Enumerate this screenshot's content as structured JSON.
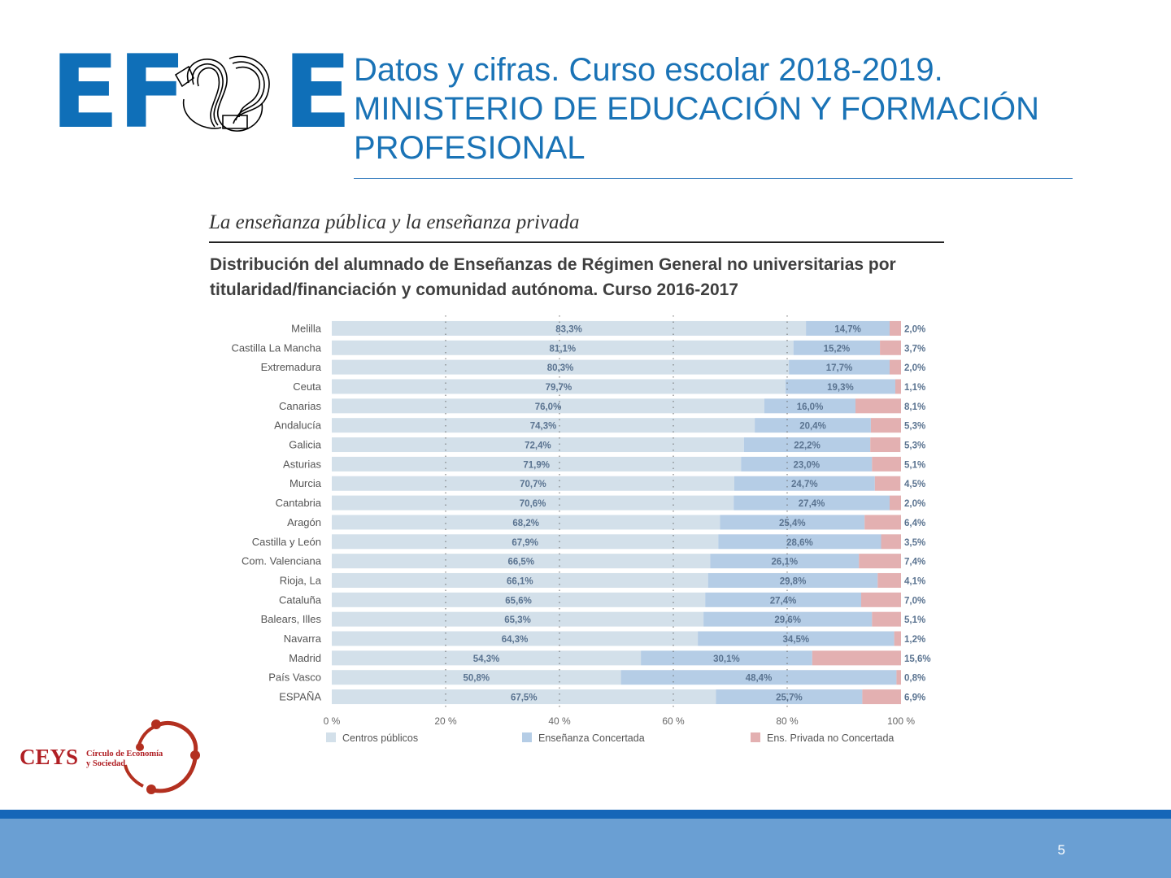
{
  "header": {
    "logo_text_left": "EF",
    "logo_text_right": "E",
    "title": "Datos y cifras. Curso escolar 2018-2019. MINISTERIO DE EDUCACIÓN Y FORMACIÓN PROFESIONAL"
  },
  "section_title": "La enseñanza pública y la enseñanza privada",
  "chart_title": "Distribución del alumnado de Enseñanzas de Régimen General no universitarias por titularidad/financiación y comunidad autónoma. Curso 2016-2017",
  "chart_data": {
    "type": "bar",
    "orientation": "horizontal",
    "stacked": true,
    "categories": [
      "Melilla",
      "Castilla La Mancha",
      "Extremadura",
      "Ceuta",
      "Canarias",
      "Andalucía",
      "Galicia",
      "Asturias",
      "Murcia",
      "Cantabria",
      "Aragón",
      "Castilla y León",
      "Com. Valenciana",
      "Rioja, La",
      "Cataluña",
      "Balears, Illes",
      "Navarra",
      "Madrid",
      "País Vasco",
      "ESPAÑA"
    ],
    "series": [
      {
        "name": "Centros públicos",
        "color": "#d3e0ea",
        "values": [
          83.3,
          81.1,
          80.3,
          79.7,
          76.0,
          74.3,
          72.4,
          71.9,
          70.7,
          70.6,
          68.2,
          67.9,
          66.5,
          66.1,
          65.6,
          65.3,
          64.3,
          54.3,
          50.8,
          67.5
        ],
        "labels": [
          "83,3%",
          "81,1%",
          "80,3%",
          "79,7%",
          "76,0%",
          "74,3%",
          "72,4%",
          "71,9%",
          "70,7%",
          "70,6%",
          "68,2%",
          "67,9%",
          "66,5%",
          "66,1%",
          "65,6%",
          "65,3%",
          "64,3%",
          "54,3%",
          "50,8%",
          "67,5%"
        ]
      },
      {
        "name": "Enseñanza Concertada",
        "color": "#b5cde6",
        "values": [
          14.7,
          15.2,
          17.7,
          19.3,
          16.0,
          20.4,
          22.2,
          23.0,
          24.7,
          27.4,
          25.4,
          28.6,
          26.1,
          29.8,
          27.4,
          29.6,
          34.5,
          30.1,
          48.4,
          25.7
        ],
        "labels": [
          "14,7%",
          "15,2%",
          "17,7%",
          "19,3%",
          "16,0%",
          "20,4%",
          "22,2%",
          "23,0%",
          "24,7%",
          "27,4%",
          "25,4%",
          "28,6%",
          "26,1%",
          "29,8%",
          "27,4%",
          "29,6%",
          "34,5%",
          "30,1%",
          "48,4%",
          "25,7%"
        ]
      },
      {
        "name": "Ens. Privada no Concertada",
        "color": "#e3b0b1",
        "values": [
          2.0,
          3.7,
          2.0,
          1.1,
          8.1,
          5.3,
          5.3,
          5.1,
          4.5,
          2.0,
          6.4,
          3.5,
          7.4,
          4.1,
          7.0,
          5.1,
          1.2,
          15.6,
          0.8,
          6.9
        ],
        "labels": [
          "2,0%",
          "3,7%",
          "2,0%",
          "1,1%",
          "8,1%",
          "5,3%",
          "5,3%",
          "5,1%",
          "4,5%",
          "2,0%",
          "6,4%",
          "3,5%",
          "7,4%",
          "4,1%",
          "7,0%",
          "5,1%",
          "1,2%",
          "15,6%",
          "0,8%",
          "6,9%"
        ]
      }
    ],
    "x_ticks": [
      "0 %",
      "20 %",
      "40 %",
      "60 %",
      "80 %",
      "100 %"
    ],
    "xlim": [
      0,
      100
    ],
    "grid": true,
    "legend_position": "bottom"
  },
  "ceys": {
    "name": "CEYS",
    "subtitle_line1": "Círculo de Economía",
    "subtitle_line2": "y Sociedad"
  },
  "footer": {
    "page_number": "5"
  }
}
